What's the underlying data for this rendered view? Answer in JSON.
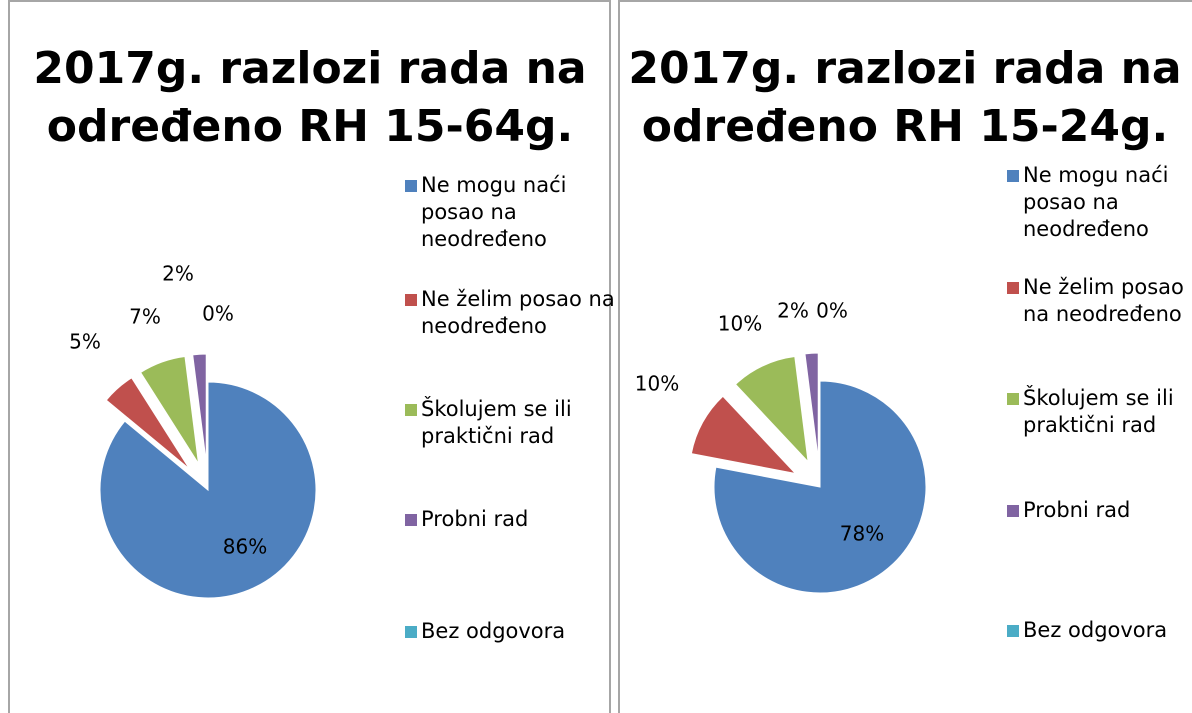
{
  "chart_data": [
    {
      "type": "pie",
      "title": "2017g. razlozi rada na određeno RH 15-64g.",
      "categories": [
        "Ne mogu naći posao na neodređeno",
        "Ne želim posao na neodređeno",
        "Školujem se ili praktični rad",
        "Probni rad",
        "Bez odgovora"
      ],
      "values": [
        86,
        5,
        7,
        2,
        0
      ],
      "value_labels": [
        "86%",
        "5%",
        "7%",
        "2%",
        "0%"
      ],
      "colors": [
        "#4f81bd",
        "#c0504d",
        "#9bbb59",
        "#8064a2",
        "#4bacc6"
      ]
    },
    {
      "type": "pie",
      "title": "2017g. razlozi rada na određeno RH 15-24g.",
      "categories": [
        "Ne mogu naći posao na neodređeno",
        "Ne želim posao na neodređeno",
        "Školujem se ili praktični rad",
        "Probni rad",
        "Bez odgovora"
      ],
      "values": [
        78,
        10,
        10,
        2,
        0
      ],
      "value_labels": [
        "78%",
        "10%",
        "10%",
        "2%",
        "0%"
      ],
      "colors": [
        "#4f81bd",
        "#c0504d",
        "#9bbb59",
        "#8064a2",
        "#4bacc6"
      ]
    }
  ]
}
